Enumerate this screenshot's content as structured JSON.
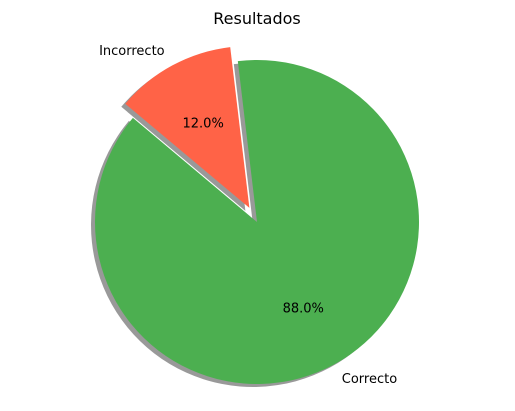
{
  "chart_data": {
    "type": "pie",
    "title": "Resultados",
    "slices": [
      {
        "label": "Correcto",
        "value": 88.0,
        "pct_label": "88.0%",
        "color": "#4caf50",
        "exploded": false
      },
      {
        "label": "Incorrecto",
        "value": 12.0,
        "pct_label": "12.0%",
        "color": "#ff6347",
        "exploded": true
      }
    ],
    "start_angle_deg": 140,
    "shadow": true,
    "legend": "none"
  }
}
